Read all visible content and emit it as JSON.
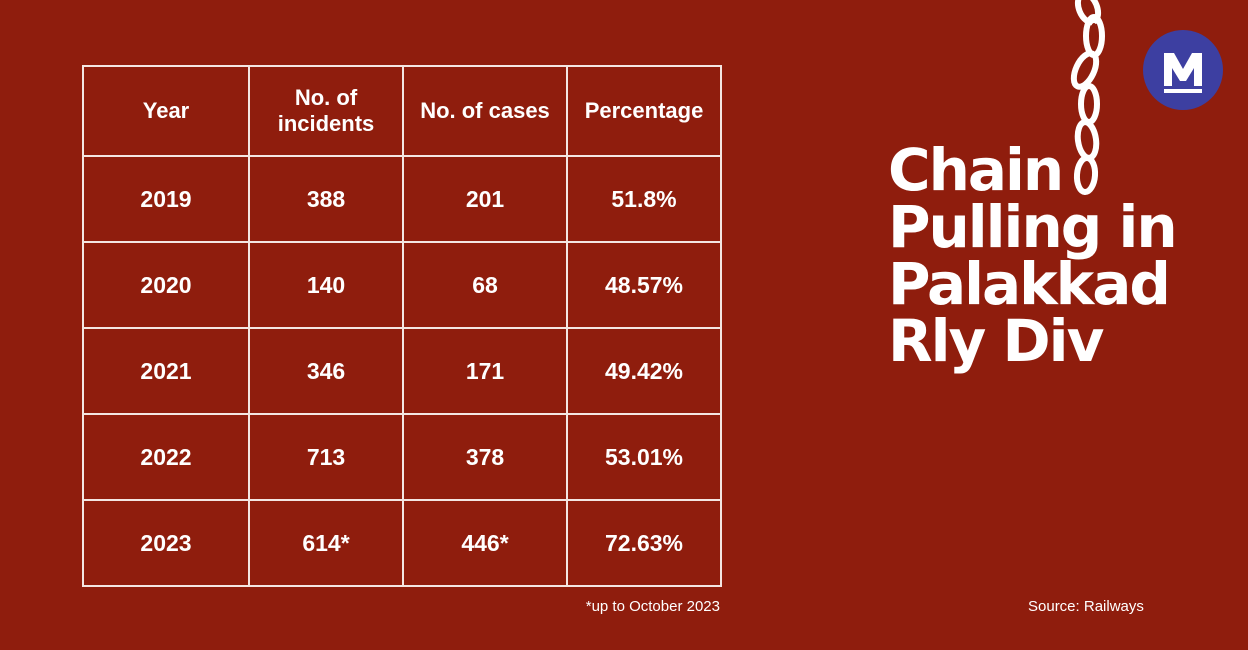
{
  "table": {
    "headers": [
      "Year",
      "No. of incidents",
      "No. of cases",
      "Percentage"
    ],
    "rows": [
      {
        "year": "2019",
        "incidents": "388",
        "cases": "201",
        "percentage": "51.8%"
      },
      {
        "year": "2020",
        "incidents": "140",
        "cases": "68",
        "percentage": "48.57%"
      },
      {
        "year": "2021",
        "incidents": "346",
        "cases": "171",
        "percentage": "49.42%"
      },
      {
        "year": "2022",
        "incidents": "713",
        "cases": "378",
        "percentage": "53.01%"
      },
      {
        "year": "2023",
        "incidents": "614*",
        "cases": "446*",
        "percentage": "72.63%"
      }
    ]
  },
  "title": {
    "line1": "Chain",
    "line2": "Pulling in",
    "line3": "Palakkad",
    "line4": "Rly Div"
  },
  "footnote": "*up to October 2023",
  "source": "Source: Railways",
  "chart_data": {
    "type": "table",
    "title": "Chain Pulling in Palakkad Rly Div",
    "columns": [
      "Year",
      "No. of incidents",
      "No. of cases",
      "Percentage"
    ],
    "rows": [
      [
        "2019",
        388,
        201,
        51.8
      ],
      [
        "2020",
        140,
        68,
        48.57
      ],
      [
        "2021",
        346,
        171,
        49.42
      ],
      [
        "2022",
        713,
        378,
        53.01
      ],
      [
        "2023",
        614,
        446,
        72.63
      ]
    ],
    "notes": "*up to October 2023",
    "source": "Railways"
  },
  "colors": {
    "background": "#8f1d0d",
    "border": "#f4e6e2",
    "text": "#ffffff",
    "logo_bg": "#3d3fa1"
  },
  "icons": {
    "logo": "manorama-m-logo",
    "chain": "chain-icon"
  }
}
